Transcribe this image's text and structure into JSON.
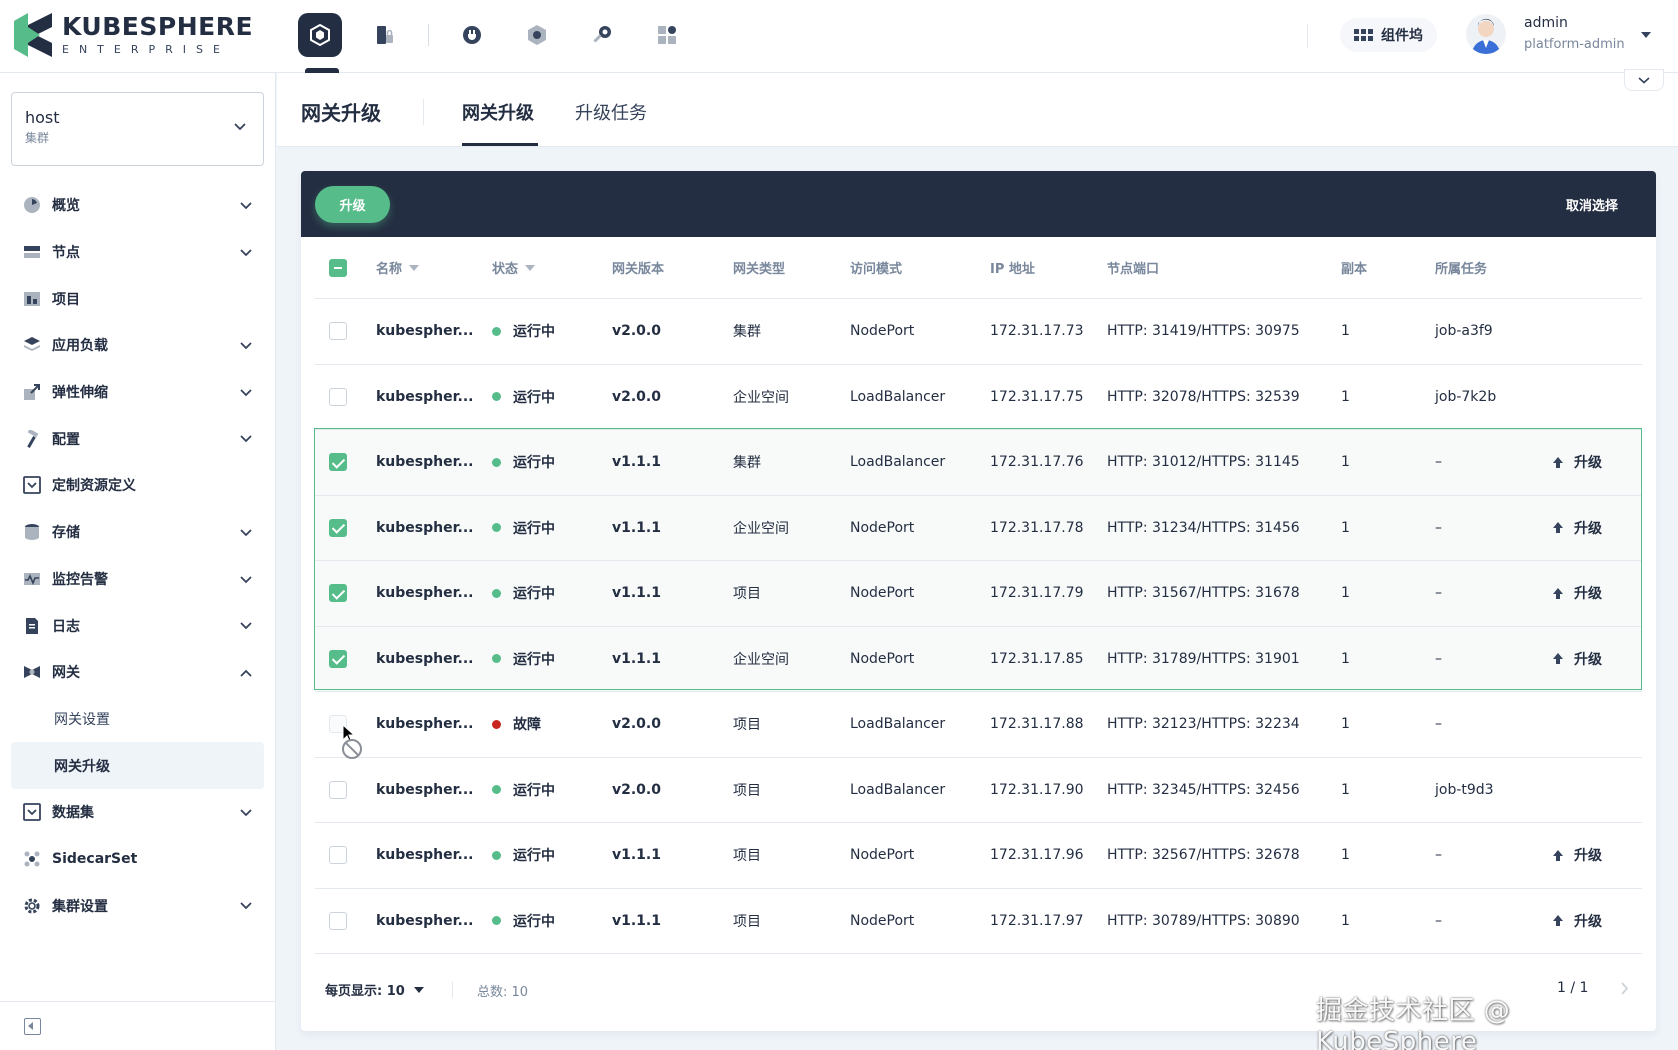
{
  "app": {
    "logo_title": "KUBESPHERE",
    "logo_subtitle": "ENTERPRISE",
    "brand_color": "#55bc8a",
    "dark_color": "#242e42"
  },
  "topnav": {
    "icons": [
      "cluster-cube-icon",
      "workspace-lock-icon",
      "plug-icon",
      "hexagon-icon",
      "wrench-icon",
      "app-grid-icon"
    ],
    "components_label": "组件坞",
    "user_name": "admin",
    "user_role": "platform-admin"
  },
  "sidebar": {
    "cluster_name": "host",
    "cluster_type": "集群",
    "items": [
      {
        "label": "概览",
        "icon": "dashboard-icon",
        "expand": "down"
      },
      {
        "label": "节点",
        "icon": "server-icon",
        "expand": "down"
      },
      {
        "label": "项目",
        "icon": "project-icon",
        "expand": ""
      },
      {
        "label": "应用负载",
        "icon": "layers-icon",
        "expand": "down"
      },
      {
        "label": "弹性伸缩",
        "icon": "scale-icon",
        "expand": "down"
      },
      {
        "label": "配置",
        "icon": "hammer-icon",
        "expand": "down"
      },
      {
        "label": "定制资源定义",
        "icon": "crd-icon",
        "expand": ""
      },
      {
        "label": "存储",
        "icon": "database-icon",
        "expand": "down"
      },
      {
        "label": "监控告警",
        "icon": "monitor-icon",
        "expand": "down"
      },
      {
        "label": "日志",
        "icon": "log-icon",
        "expand": "down"
      },
      {
        "label": "网关",
        "icon": "gateway-icon",
        "expand": "up"
      },
      {
        "label": "网关设置",
        "sub": true
      },
      {
        "label": "网关升级",
        "sub": true,
        "active": true
      },
      {
        "label": "数据集",
        "icon": "dataset-icon",
        "expand": "down"
      },
      {
        "label": "SidecarSet",
        "icon": "sidecar-icon",
        "expand": ""
      },
      {
        "label": "集群设置",
        "icon": "gear-icon",
        "expand": "down"
      }
    ]
  },
  "header": {
    "title": "网关升级",
    "tabs": [
      "网关升级",
      "升级任务"
    ]
  },
  "toolbar": {
    "upgrade_label": "升级",
    "deselect_label": "取消选择"
  },
  "table": {
    "columns": [
      "名称",
      "状态",
      "网关版本",
      "网关类型",
      "访问模式",
      "IP 地址",
      "节点端口",
      "副本",
      "所属任务"
    ],
    "rows": [
      {
        "checked": "none",
        "name": "kubespher...",
        "status": "运行中",
        "ok": true,
        "version": "v2.0.0",
        "type": "集群",
        "mode": "NodePort",
        "ip": "172.31.17.73",
        "port": "HTTP: 31419/HTTPS: 30975",
        "replicas": "1",
        "job": "job-a3f9",
        "action": ""
      },
      {
        "checked": "none",
        "name": "kubespher...",
        "status": "运行中",
        "ok": true,
        "version": "v2.0.0",
        "type": "企业空间",
        "mode": "LoadBalancer",
        "ip": "172.31.17.75",
        "port": "HTTP: 32078/HTTPS: 32539",
        "replicas": "1",
        "job": "job-7k2b",
        "action": ""
      },
      {
        "checked": "on",
        "name": "kubespher...",
        "status": "运行中",
        "ok": true,
        "version": "v1.1.1",
        "type": "集群",
        "mode": "LoadBalancer",
        "ip": "172.31.17.76",
        "port": "HTTP: 31012/HTTPS: 31145",
        "replicas": "1",
        "job": "–",
        "action": "升级"
      },
      {
        "checked": "on",
        "name": "kubespher...",
        "status": "运行中",
        "ok": true,
        "version": "v1.1.1",
        "type": "企业空间",
        "mode": "NodePort",
        "ip": "172.31.17.78",
        "port": "HTTP: 31234/HTTPS: 31456",
        "replicas": "1",
        "job": "–",
        "action": "升级"
      },
      {
        "checked": "on",
        "name": "kubespher...",
        "status": "运行中",
        "ok": true,
        "version": "v1.1.1",
        "type": "项目",
        "mode": "NodePort",
        "ip": "172.31.17.79",
        "port": "HTTP: 31567/HTTPS: 31678",
        "replicas": "1",
        "job": "–",
        "action": "升级"
      },
      {
        "checked": "on",
        "name": "kubespher...",
        "status": "运行中",
        "ok": true,
        "version": "v1.1.1",
        "type": "企业空间",
        "mode": "NodePort",
        "ip": "172.31.17.85",
        "port": "HTTP: 31789/HTTPS: 31901",
        "replicas": "1",
        "job": "–",
        "action": "升级"
      },
      {
        "checked": "dis",
        "name": "kubespher...",
        "status": "故障",
        "ok": false,
        "version": "v2.0.0",
        "type": "项目",
        "mode": "LoadBalancer",
        "ip": "172.31.17.88",
        "port": "HTTP: 32123/HTTPS: 32234",
        "replicas": "1",
        "job": "–",
        "action": ""
      },
      {
        "checked": "none",
        "name": "kubespher...",
        "status": "运行中",
        "ok": true,
        "version": "v2.0.0",
        "type": "项目",
        "mode": "LoadBalancer",
        "ip": "172.31.17.90",
        "port": "HTTP: 32345/HTTPS: 32456",
        "replicas": "1",
        "job": "job-t9d3",
        "action": ""
      },
      {
        "checked": "none",
        "name": "kubespher...",
        "status": "运行中",
        "ok": true,
        "version": "v1.1.1",
        "type": "项目",
        "mode": "NodePort",
        "ip": "172.31.17.96",
        "port": "HTTP: 32567/HTTPS: 32678",
        "replicas": "1",
        "job": "–",
        "action": "升级"
      },
      {
        "checked": "none",
        "name": "kubespher...",
        "status": "运行中",
        "ok": true,
        "version": "v1.1.1",
        "type": "项目",
        "mode": "NodePort",
        "ip": "172.31.17.97",
        "port": "HTTP: 30789/HTTPS: 30890",
        "replicas": "1",
        "job": "–",
        "action": "升级"
      }
    ]
  },
  "pager": {
    "page_size_label": "每页显示: 10",
    "total_label": "总数: 10",
    "page_label": "1 / 1"
  },
  "watermark": "掘金技术社区 @ KubeSphere"
}
